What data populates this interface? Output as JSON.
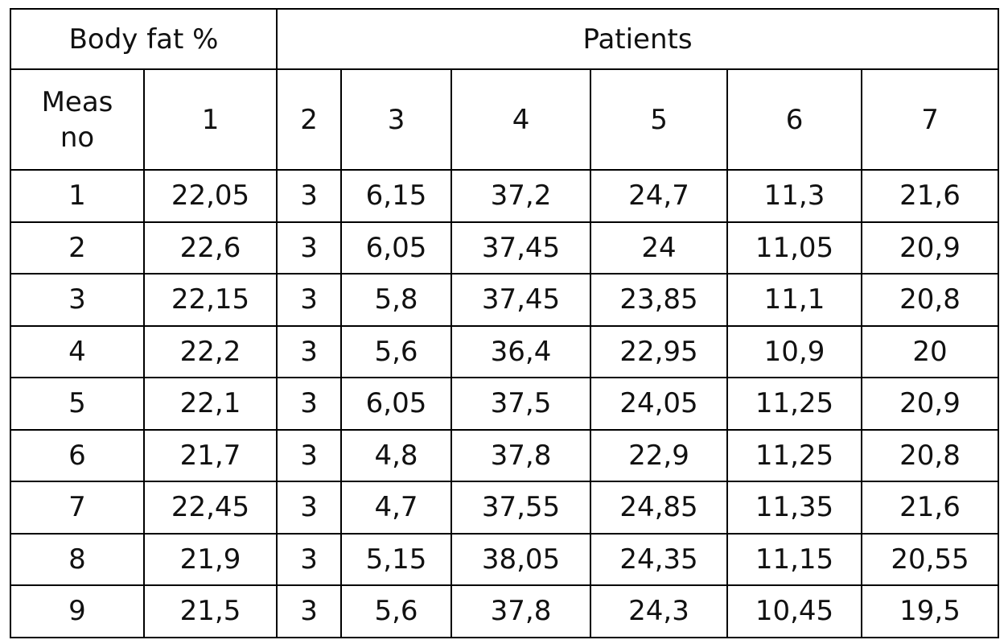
{
  "table": {
    "header": [
      "Body fat %",
      "Patients"
    ],
    "columns": [
      "Meas no",
      "1",
      "2",
      "3",
      "4",
      "5",
      "6",
      "7"
    ],
    "rows": [
      [
        "1",
        "22,05",
        "3",
        "6,15",
        "37,2",
        "24,7",
        "11,3",
        "21,6"
      ],
      [
        "2",
        "22,6",
        "3",
        "6,05",
        "37,45",
        "24",
        "11,05",
        "20,9"
      ],
      [
        "3",
        "22,15",
        "3",
        "5,8",
        "37,45",
        "23,85",
        "11,1",
        "20,8"
      ],
      [
        "4",
        "22,2",
        "3",
        "5,6",
        "36,4",
        "22,95",
        "10,9",
        "20"
      ],
      [
        "5",
        "22,1",
        "3",
        "6,05",
        "37,5",
        "24,05",
        "11,25",
        "20,9"
      ],
      [
        "6",
        "21,7",
        "3",
        "4,8",
        "37,8",
        "22,9",
        "11,25",
        "20,8"
      ],
      [
        "7",
        "22,45",
        "3",
        "4,7",
        "37,55",
        "24,85",
        "11,35",
        "21,6"
      ],
      [
        "8",
        "21,9",
        "3",
        "5,15",
        "38,05",
        "24,35",
        "11,15",
        "20,55"
      ],
      [
        "9",
        "21,5",
        "3",
        "5,6",
        "37,8",
        "24,3",
        "10,45",
        "19,5"
      ]
    ]
  }
}
